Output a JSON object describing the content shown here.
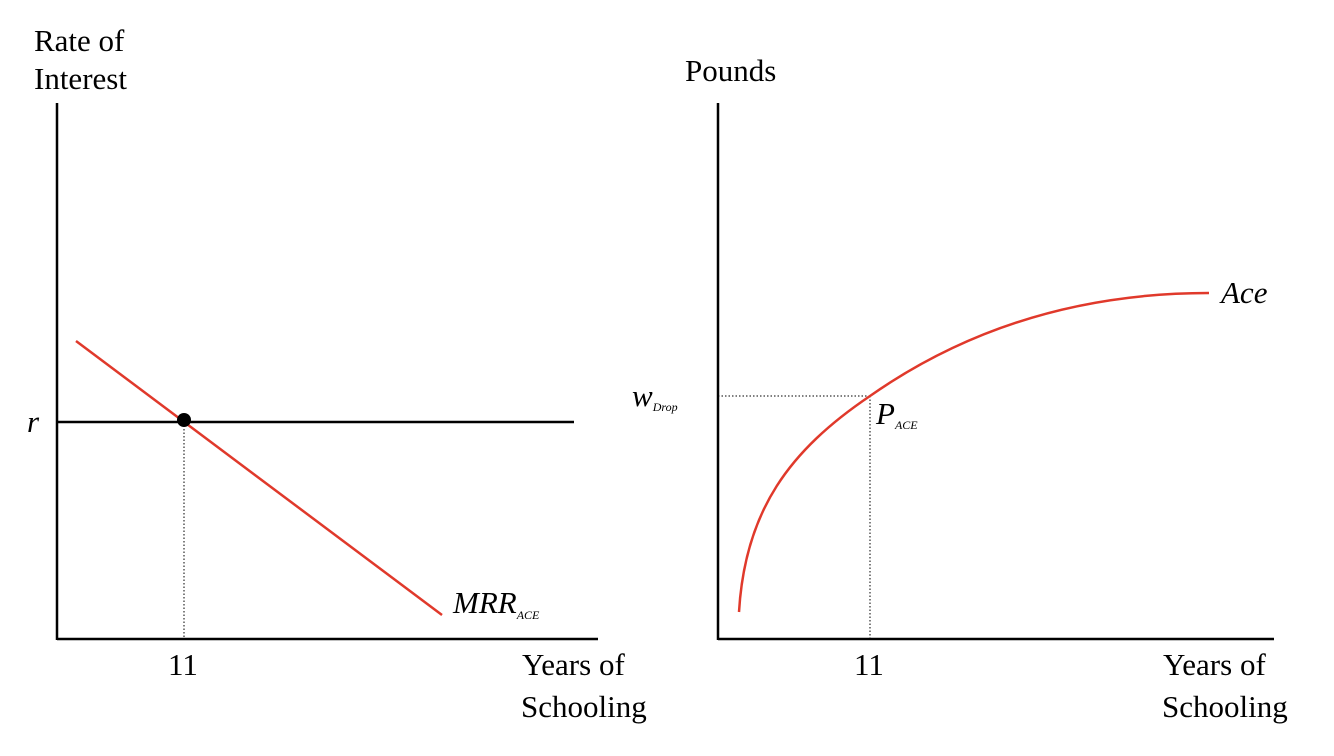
{
  "colors": {
    "axis": "#000000",
    "curve": "#e0392b",
    "guide": "#000000",
    "background": "#ffffff"
  },
  "left_panel": {
    "y_axis_label_line1": "Rate of",
    "y_axis_label_line2": "Interest",
    "x_axis_label_line1": "Years of",
    "x_axis_label_line2": "Schooling",
    "rate_label": "r",
    "tick_label": "11",
    "curve_label_main": "MRR",
    "curve_label_sub": "ACE"
  },
  "right_panel": {
    "y_axis_label": "Pounds",
    "x_axis_label_line1": "Years of",
    "x_axis_label_line2": "Schooling",
    "wage_label_main": "w",
    "wage_label_sub": "Drop",
    "point_label_main": "P",
    "point_label_sub": "ACE",
    "tick_label": "11",
    "curve_label": "Ace"
  }
}
